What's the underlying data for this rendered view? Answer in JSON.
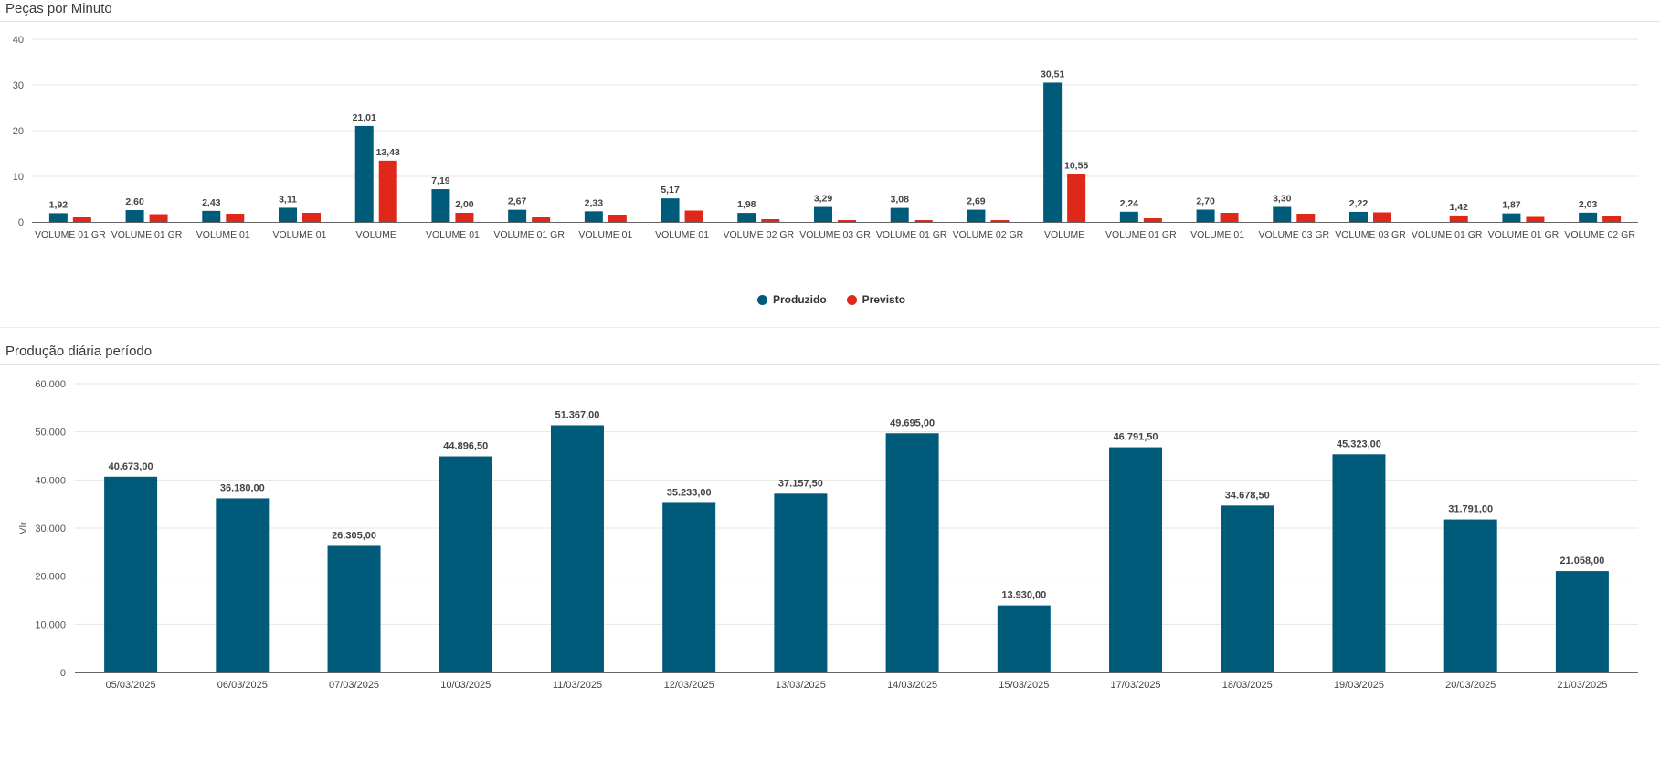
{
  "panels": {
    "top_title": "Peças por Minuto",
    "bottom_title": "Produção diária período"
  },
  "colors": {
    "produzido": "#005a7a",
    "previsto": "#e0281a"
  },
  "chart_data": [
    {
      "type": "bar",
      "title": "Peças por Minuto",
      "xlabel": "",
      "ylabel": "",
      "ylim": [
        0,
        40
      ],
      "yticks": [
        "0",
        "10",
        "20",
        "30",
        "40"
      ],
      "categories": [
        "VOLUME 01 GR",
        "VOLUME 01 GR",
        "VOLUME 01",
        "VOLUME 01",
        "VOLUME",
        "VOLUME 01",
        "VOLUME 01 GR",
        "VOLUME 01",
        "VOLUME 01",
        "VOLUME 02 GR",
        "VOLUME 03 GR",
        "VOLUME 01 GR",
        "VOLUME 02 GR",
        "VOLUME",
        "VOLUME 01 GR",
        "VOLUME 01",
        "VOLUME 03 GR",
        "VOLUME 03 GR",
        "VOLUME 01 GR",
        "VOLUME 01 GR",
        "VOLUME 02 GR"
      ],
      "series": [
        {
          "name": "Produzido",
          "values": [
            1.92,
            2.6,
            2.43,
            3.11,
            21.01,
            7.19,
            2.67,
            2.33,
            5.17,
            1.98,
            3.29,
            3.08,
            2.69,
            30.51,
            2.24,
            2.7,
            3.3,
            2.22,
            0,
            1.87,
            2.03
          ],
          "labels": [
            "1,92",
            "2,60",
            "2,43",
            "3,11",
            "21,01",
            "7,19",
            "2,67",
            "2,33",
            "5,17",
            "1,98",
            "3,29",
            "3,08",
            "2,69",
            "30,51",
            "2,24",
            "2,70",
            "3,30",
            "2,22",
            "",
            "1,87",
            "2,03"
          ]
        },
        {
          "name": "Previsto",
          "values": [
            1.2,
            1.7,
            1.8,
            2.0,
            13.43,
            2.0,
            1.2,
            1.6,
            2.5,
            0.6,
            0.4,
            0.4,
            0.4,
            10.55,
            0.8,
            2.0,
            1.8,
            2.1,
            1.42,
            1.3,
            1.4
          ],
          "labels": [
            "",
            "",
            "",
            "",
            "13,43",
            "2,00",
            "",
            "",
            "",
            "",
            "",
            "",
            "",
            "10,55",
            "",
            "",
            "",
            "",
            "1,42",
            "",
            ""
          ]
        }
      ],
      "legend": "bottom-center",
      "grid": true
    },
    {
      "type": "bar",
      "title": "Produção diária período",
      "xlabel": "",
      "ylabel": "Vlr",
      "ylim": [
        0,
        60000
      ],
      "yticks": [
        "0",
        "10.000",
        "20.000",
        "30.000",
        "40.000",
        "50.000",
        "60.000"
      ],
      "categories": [
        "05/03/2025",
        "06/03/2025",
        "07/03/2025",
        "10/03/2025",
        "11/03/2025",
        "12/03/2025",
        "13/03/2025",
        "14/03/2025",
        "15/03/2025",
        "17/03/2025",
        "18/03/2025",
        "19/03/2025",
        "20/03/2025",
        "21/03/2025"
      ],
      "values": [
        40673,
        36180,
        26305,
        44896.5,
        51367,
        35233,
        37157.5,
        49695,
        13930,
        46791.5,
        34678.5,
        45323,
        31791,
        21058
      ],
      "labels": [
        "40.673,00",
        "36.180,00",
        "26.305,00",
        "44.896,50",
        "51.367,00",
        "35.233,00",
        "37.157,50",
        "49.695,00",
        "13.930,00",
        "46.791,50",
        "34.678,50",
        "45.323,00",
        "31.791,00",
        "21.058,00"
      ],
      "grid": true
    }
  ]
}
